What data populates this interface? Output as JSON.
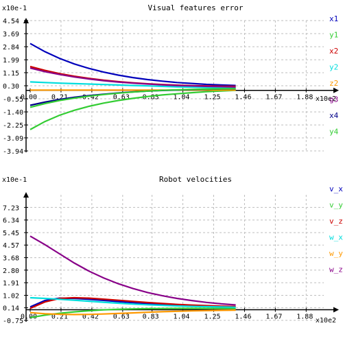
{
  "chart_data": [
    {
      "type": "line",
      "title": "Visual features error",
      "y_multiplier": "x10e-1",
      "x_multiplier": "x10e2",
      "ylim": [
        -3.94,
        4.54
      ],
      "xlim": [
        0,
        2.0
      ],
      "y_ticks": [
        "4.54",
        "3.69",
        "2.84",
        "1.99",
        "1.15",
        "0.30",
        "-0.55",
        "-1.40",
        "-2.25",
        "-3.09",
        "-3.94"
      ],
      "y_tick_values": [
        4.54,
        3.69,
        2.84,
        1.99,
        1.15,
        0.3,
        -0.55,
        -1.4,
        -2.25,
        -3.09,
        -3.94
      ],
      "x_ticks": [
        "0.00",
        "0.21",
        "0.42",
        "0.63",
        "0.83",
        "1.04",
        "1.25",
        "1.46",
        "1.67",
        "1.88"
      ],
      "x_tick_values": [
        0.0,
        0.21,
        0.42,
        0.63,
        0.83,
        1.04,
        1.25,
        1.46,
        1.67,
        1.88
      ],
      "grid": true,
      "legend_position": "right",
      "x": [
        0.0,
        0.1,
        0.2,
        0.3,
        0.4,
        0.5,
        0.6,
        0.7,
        0.8,
        0.9,
        1.0,
        1.1,
        1.2,
        1.3,
        1.4
      ],
      "series": [
        {
          "name": "x1",
          "color": "#0000bb",
          "values": [
            3.05,
            2.52,
            2.08,
            1.72,
            1.43,
            1.19,
            0.99,
            0.83,
            0.7,
            0.6,
            0.51,
            0.45,
            0.39,
            0.35,
            0.32
          ]
        },
        {
          "name": "y1",
          "color": "#33cc33",
          "values": [
            -2.55,
            -2.03,
            -1.62,
            -1.3,
            -1.04,
            -0.83,
            -0.66,
            -0.52,
            -0.4,
            -0.3,
            -0.22,
            -0.15,
            -0.09,
            -0.04,
            0.0
          ]
        },
        {
          "name": "x2",
          "color": "#cc0000",
          "values": [
            1.55,
            1.3,
            1.09,
            0.92,
            0.78,
            0.66,
            0.57,
            0.49,
            0.43,
            0.38,
            0.34,
            0.31,
            0.29,
            0.27,
            0.26
          ]
        },
        {
          "name": "y2",
          "color": "#00dddd",
          "values": [
            0.55,
            0.51,
            0.47,
            0.44,
            0.41,
            0.38,
            0.35,
            0.32,
            0.29,
            0.26,
            0.23,
            0.21,
            0.19,
            0.17,
            0.16
          ]
        },
        {
          "name": "z2",
          "color": "#ff9900",
          "values": [
            0.02,
            0.02,
            0.02,
            0.02,
            0.02,
            0.02,
            0.02,
            0.02,
            0.02,
            0.02,
            0.02,
            0.02,
            0.02,
            0.02,
            0.02
          ]
        },
        {
          "name": "g3",
          "color": "#880088",
          "values": [
            1.45,
            1.22,
            1.03,
            0.87,
            0.74,
            0.63,
            0.54,
            0.47,
            0.41,
            0.36,
            0.32,
            0.29,
            0.26,
            0.24,
            0.22
          ]
        },
        {
          "name": "x4",
          "color": "#000088",
          "values": [
            -0.97,
            -0.76,
            -0.59,
            -0.45,
            -0.34,
            -0.25,
            -0.17,
            -0.1,
            -0.05,
            -0.01,
            0.02,
            0.05,
            0.07,
            0.09,
            0.1
          ]
        },
        {
          "name": "y4",
          "color": "#33cc33",
          "values": [
            -1.1,
            -0.86,
            -0.66,
            -0.51,
            -0.38,
            -0.27,
            -0.18,
            -0.11,
            -0.05,
            0.0,
            0.03,
            0.06,
            0.08,
            0.1,
            0.11
          ]
        }
      ]
    },
    {
      "type": "line",
      "title": "Robot velocities",
      "y_multiplier": "x10e-1",
      "x_multiplier": "x10e2",
      "ylim": [
        -0.75,
        8.12
      ],
      "xlim": [
        0,
        2.0
      ],
      "y_ticks": [
        "7.23",
        "6.34",
        "5.45",
        "4.57",
        "3.68",
        "2.80",
        "1.91",
        "1.02",
        "0.14",
        "-0.75"
      ],
      "y_tick_values": [
        7.23,
        6.34,
        5.45,
        4.57,
        3.68,
        2.8,
        1.91,
        1.02,
        0.14,
        -0.75
      ],
      "x_ticks": [
        "0.00",
        "0.21",
        "0.42",
        "0.63",
        "0.83",
        "1.04",
        "1.25",
        "1.46",
        "1.67",
        "1.88"
      ],
      "x_tick_values": [
        0.0,
        0.21,
        0.42,
        0.63,
        0.83,
        1.04,
        1.25,
        1.46,
        1.67,
        1.88
      ],
      "grid": true,
      "legend_position": "right",
      "x": [
        0.0,
        0.1,
        0.2,
        0.3,
        0.4,
        0.5,
        0.6,
        0.7,
        0.8,
        0.9,
        1.0,
        1.1,
        1.2,
        1.3,
        1.4
      ],
      "series": [
        {
          "name": "v_x",
          "color": "#0000bb",
          "values": [
            0.2,
            0.65,
            0.82,
            0.8,
            0.74,
            0.66,
            0.58,
            0.5,
            0.44,
            0.38,
            0.33,
            0.29,
            0.26,
            0.23,
            0.21
          ]
        },
        {
          "name": "v_y",
          "color": "#33cc33",
          "values": [
            -0.55,
            -0.38,
            -0.25,
            -0.15,
            -0.07,
            -0.01,
            0.03,
            0.06,
            0.08,
            0.09,
            0.1,
            0.1,
            0.1,
            0.1,
            0.1
          ]
        },
        {
          "name": "v_z",
          "color": "#cc0000",
          "values": [
            0.1,
            0.55,
            0.8,
            0.85,
            0.82,
            0.75,
            0.67,
            0.59,
            0.51,
            0.44,
            0.38,
            0.33,
            0.29,
            0.26,
            0.23
          ]
        },
        {
          "name": "w_x",
          "color": "#00dddd",
          "values": [
            0.85,
            0.8,
            0.74,
            0.67,
            0.6,
            0.53,
            0.46,
            0.4,
            0.35,
            0.31,
            0.27,
            0.24,
            0.22,
            0.2,
            0.18
          ]
        },
        {
          "name": "w_y",
          "color": "#ff9900",
          "values": [
            -0.2,
            -0.28,
            -0.32,
            -0.34,
            -0.33,
            -0.3,
            -0.26,
            -0.22,
            -0.18,
            -0.14,
            -0.11,
            -0.08,
            -0.06,
            -0.04,
            -0.03
          ]
        },
        {
          "name": "w_z",
          "color": "#880088",
          "values": [
            5.2,
            4.6,
            3.95,
            3.3,
            2.73,
            2.25,
            1.84,
            1.5,
            1.22,
            0.99,
            0.8,
            0.65,
            0.52,
            0.42,
            0.34
          ]
        }
      ]
    }
  ]
}
